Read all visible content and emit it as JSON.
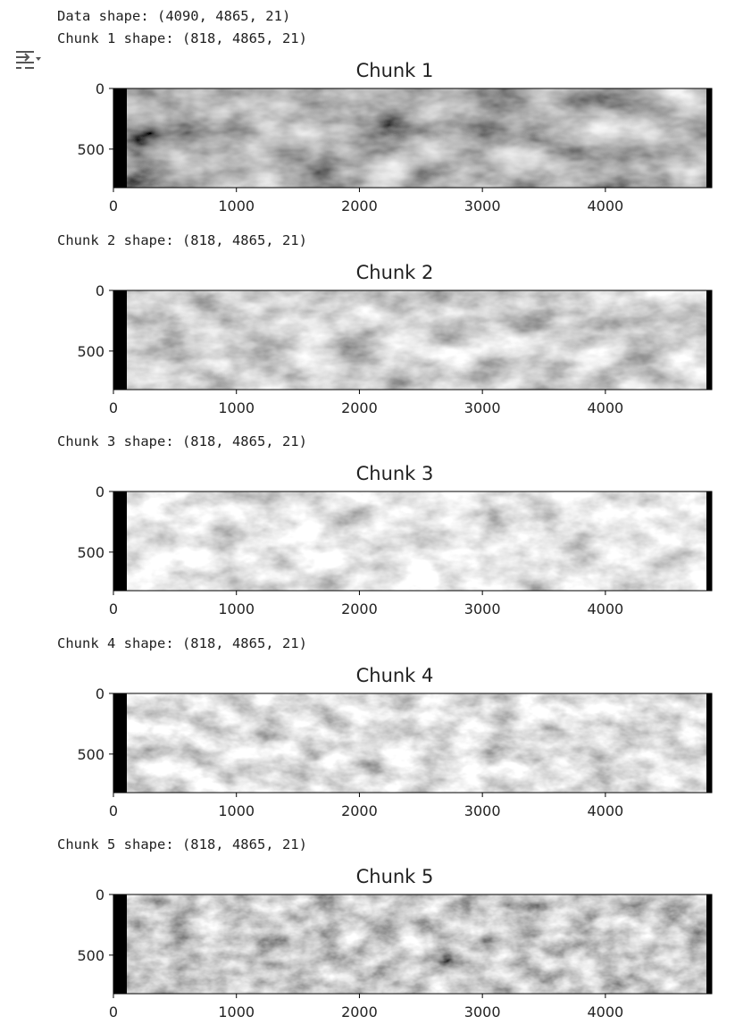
{
  "output": {
    "data_shape_line": "Data shape: (4090, 4865, 21)",
    "icon": "output-toggle-icon"
  },
  "chunks": [
    {
      "shape_line": "Chunk 1 shape: (818, 4865, 21)",
      "title": "Chunk 1"
    },
    {
      "shape_line": "Chunk 2 shape: (818, 4865, 21)",
      "title": "Chunk 2"
    },
    {
      "shape_line": "Chunk 3 shape: (818, 4865, 21)",
      "title": "Chunk 3"
    },
    {
      "shape_line": "Chunk 4 shape: (818, 4865, 21)",
      "title": "Chunk 4"
    },
    {
      "shape_line": "Chunk 5 shape: (818, 4865, 21)",
      "title": "Chunk 5"
    }
  ],
  "axes": {
    "x_ticks": [
      "0",
      "1000",
      "2000",
      "3000",
      "4000"
    ],
    "y_ticks": [
      "0",
      "500"
    ],
    "x_range": [
      0,
      4865
    ],
    "y_range": [
      0,
      818
    ]
  },
  "colors": {
    "text": "#1f1f1f",
    "image_left_border": "#000000"
  }
}
